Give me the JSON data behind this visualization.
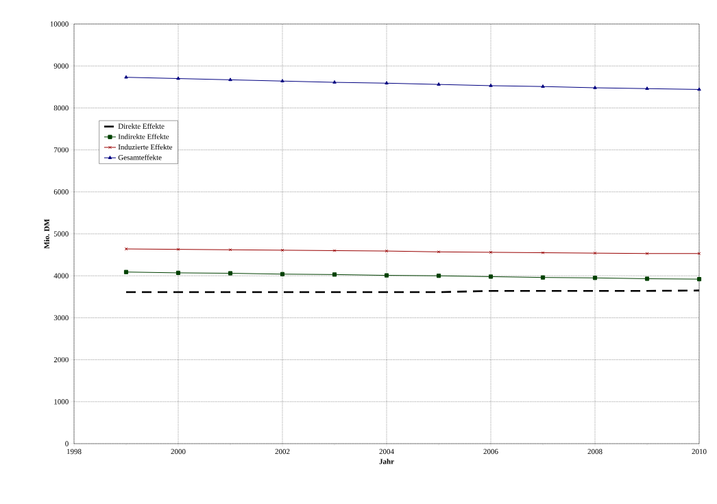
{
  "chart_data": {
    "type": "line",
    "xlabel": "Jahr",
    "ylabel": "Mio. DM",
    "x": [
      1999,
      2000,
      2001,
      2002,
      2003,
      2004,
      2005,
      2006,
      2007,
      2008,
      2009,
      2010
    ],
    "series": [
      {
        "name": "Direkte Effekte",
        "color": "#000000",
        "marker": "none",
        "line_style": "dashed",
        "values": [
          3610,
          3610,
          3610,
          3610,
          3610,
          3610,
          3610,
          3640,
          3640,
          3640,
          3640,
          3650
        ]
      },
      {
        "name": "Indirekte Effekte",
        "color": "#004000",
        "marker": "square",
        "line_style": "solid",
        "values": [
          4090,
          4070,
          4060,
          4040,
          4030,
          4010,
          4000,
          3980,
          3960,
          3950,
          3930,
          3920
        ]
      },
      {
        "name": "Induzierte Effekte",
        "color": "#990000",
        "marker": "cross",
        "line_style": "solid",
        "values": [
          4640,
          4630,
          4620,
          4610,
          4600,
          4590,
          4570,
          4560,
          4550,
          4540,
          4530,
          4530
        ]
      },
      {
        "name": "Gesamteffekte",
        "color": "#000080",
        "marker": "triangle",
        "line_style": "solid",
        "values": [
          8730,
          8700,
          8670,
          8640,
          8610,
          8590,
          8560,
          8530,
          8510,
          8480,
          8460,
          8440
        ]
      }
    ],
    "xlim": [
      1998,
      2010
    ],
    "xticks": [
      1998,
      2000,
      2002,
      2004,
      2006,
      2008,
      2010
    ],
    "ylim": [
      0,
      10000
    ],
    "yticks": [
      0,
      1000,
      2000,
      3000,
      4000,
      5000,
      6000,
      7000,
      8000,
      9000,
      10000
    ],
    "grid": true,
    "legend": "left"
  }
}
